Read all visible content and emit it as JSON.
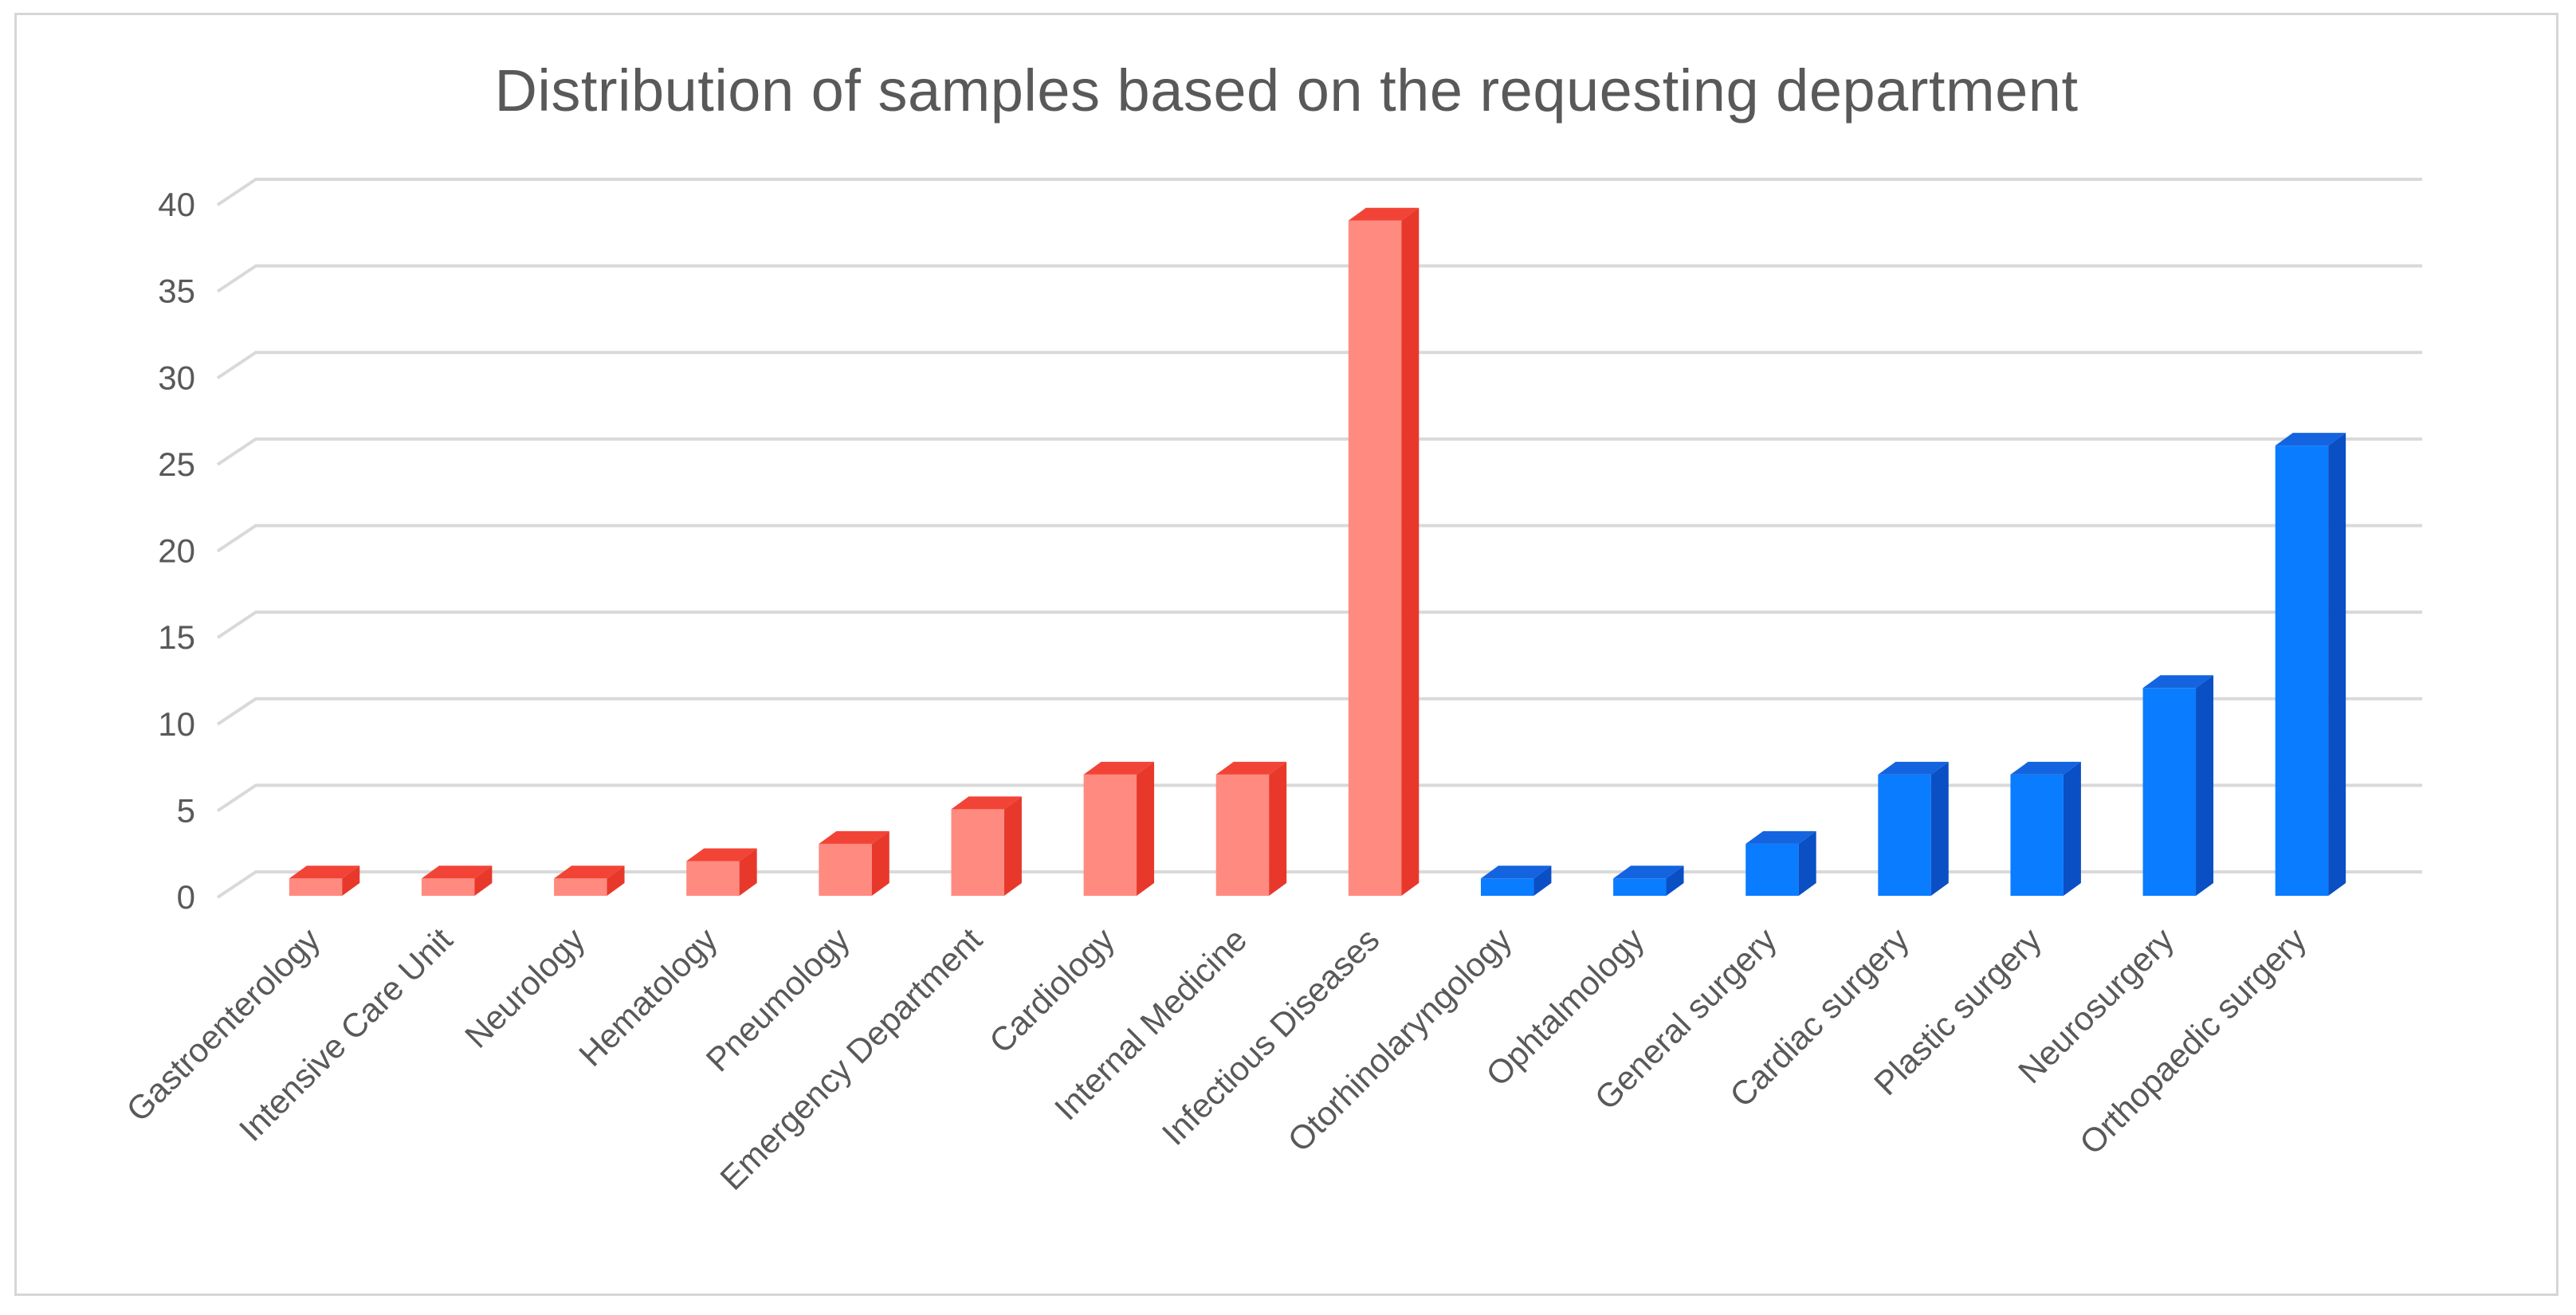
{
  "chart_data": {
    "type": "bar",
    "title": "Distribution of samples based on the requesting department",
    "xlabel": "",
    "ylabel": "",
    "ylim": [
      0,
      40
    ],
    "yticks": [
      0,
      5,
      10,
      15,
      20,
      25,
      30,
      35,
      40
    ],
    "grid": true,
    "legend": "none",
    "categories": [
      "Gastroenterology",
      "Intensive Care Unit",
      "Neurology",
      "Hematology",
      "Pneumology",
      "Emergency Department",
      "Cardiology",
      "Internal Medicine",
      "Infectious Diseases",
      "Otorhinolaryngology",
      "Ophtalmology",
      "General surgery",
      "Cardiac surgery",
      "Plastic surgery",
      "Neurosurgery",
      "Orthopaedic surgery"
    ],
    "values": [
      1,
      1,
      1,
      2,
      3,
      5,
      7,
      7,
      39,
      1,
      1,
      3,
      7,
      7,
      12,
      26
    ],
    "groups": [
      "medical",
      "medical",
      "medical",
      "medical",
      "medical",
      "medical",
      "medical",
      "medical",
      "medical",
      "surgical",
      "surgical",
      "surgical",
      "surgical",
      "surgical",
      "surgical",
      "surgical"
    ]
  },
  "colors": {
    "medical": {
      "front": "#ff8a80",
      "side": "#e8382c",
      "top": "#f24436"
    },
    "surgical": {
      "front": "#0a7cff",
      "side": "#0a4fc4",
      "top": "#1464e0"
    },
    "grid": "#d9d9d9",
    "text": "#595959"
  }
}
